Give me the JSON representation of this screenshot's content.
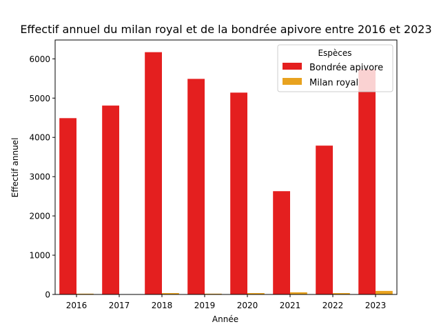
{
  "chart_data": {
    "type": "bar",
    "title": "Effectif annuel du milan royal et de la bondrée apivore entre 2016 et 2023",
    "xlabel": "Année",
    "ylabel": "Effectif annuel",
    "categories": [
      "2016",
      "2017",
      "2018",
      "2019",
      "2020",
      "2021",
      "2022",
      "2023"
    ],
    "ylim": [
      0,
      6480
    ],
    "yticks": [
      0,
      1000,
      2000,
      3000,
      4000,
      5000,
      6000
    ],
    "grid": false,
    "series": [
      {
        "name": "Bondrée apivore",
        "color": "#e41f1f",
        "values": [
          4490,
          4810,
          6170,
          5490,
          5140,
          2630,
          3790,
          5730
        ]
      },
      {
        "name": "Milan royal",
        "color": "#e8a21f",
        "values": [
          20,
          5,
          35,
          20,
          35,
          55,
          35,
          90
        ]
      }
    ],
    "legend": {
      "title": "Espèces",
      "position": "top-right"
    }
  }
}
